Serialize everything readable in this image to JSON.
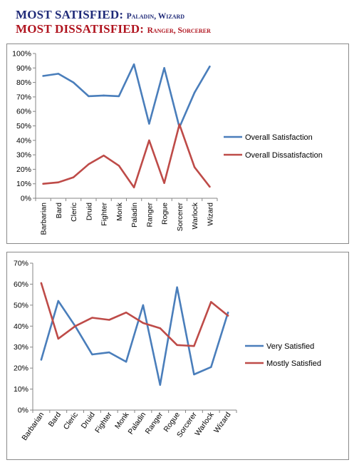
{
  "header": {
    "line1_big": "MOST SATISFIED",
    "line1_sep": ": ",
    "line1_small": "Paladin, Wizard",
    "line2_big": "MOST DISSATISFIED",
    "line2_sep": ": ",
    "line2_small": "Ranger, Sorcerer"
  },
  "chart_data": [
    {
      "type": "line",
      "categories": [
        "Barbarian",
        "Bard",
        "Cleric",
        "Druid",
        "Fighter",
        "Monk",
        "Paladin",
        "Ranger",
        "Rogue",
        "Sorcerer",
        "Warlock",
        "Wizard"
      ],
      "ylim": [
        0,
        100
      ],
      "yticks": [
        "0%",
        "10%",
        "20%",
        "30%",
        "40%",
        "50%",
        "60%",
        "70%",
        "80%",
        "90%",
        "100%"
      ],
      "legend_position": "right",
      "grid": false,
      "series": [
        {
          "name": "Overall Satisfaction",
          "color": "#4a7ebb",
          "values": [
            84.5,
            86,
            80,
            70.5,
            71,
            70.5,
            92.5,
            51.5,
            90,
            49,
            73,
            91
          ]
        },
        {
          "name": "Overall Dissatisfaction",
          "color": "#be4b48",
          "values": [
            10,
            11,
            14.5,
            23.5,
            29.5,
            22.5,
            7.5,
            40,
            10.5,
            51,
            21.5,
            8
          ]
        }
      ]
    },
    {
      "type": "line",
      "categories": [
        "Barbarian",
        "Bard",
        "Cleric",
        "Druid",
        "Fighter",
        "Monk",
        "Paladin",
        "Ranger",
        "Rogue",
        "Sorcerer",
        "Warlock",
        "Wizard"
      ],
      "ylim": [
        0,
        70
      ],
      "yticks": [
        "0%",
        "10%",
        "20%",
        "30%",
        "40%",
        "50%",
        "60%",
        "70%"
      ],
      "legend_position": "right",
      "grid": false,
      "series": [
        {
          "name": "Very Satisfied",
          "color": "#4a7ebb",
          "values": [
            24,
            52,
            40,
            26.5,
            27.5,
            23,
            50,
            12,
            58.5,
            17,
            20.5,
            46.5
          ]
        },
        {
          "name": "Mostly Satisfied",
          "color": "#be4b48",
          "values": [
            60.5,
            34,
            40,
            44,
            43,
            46.5,
            41.5,
            39,
            31,
            30.5,
            51.5,
            45
          ]
        }
      ]
    }
  ]
}
